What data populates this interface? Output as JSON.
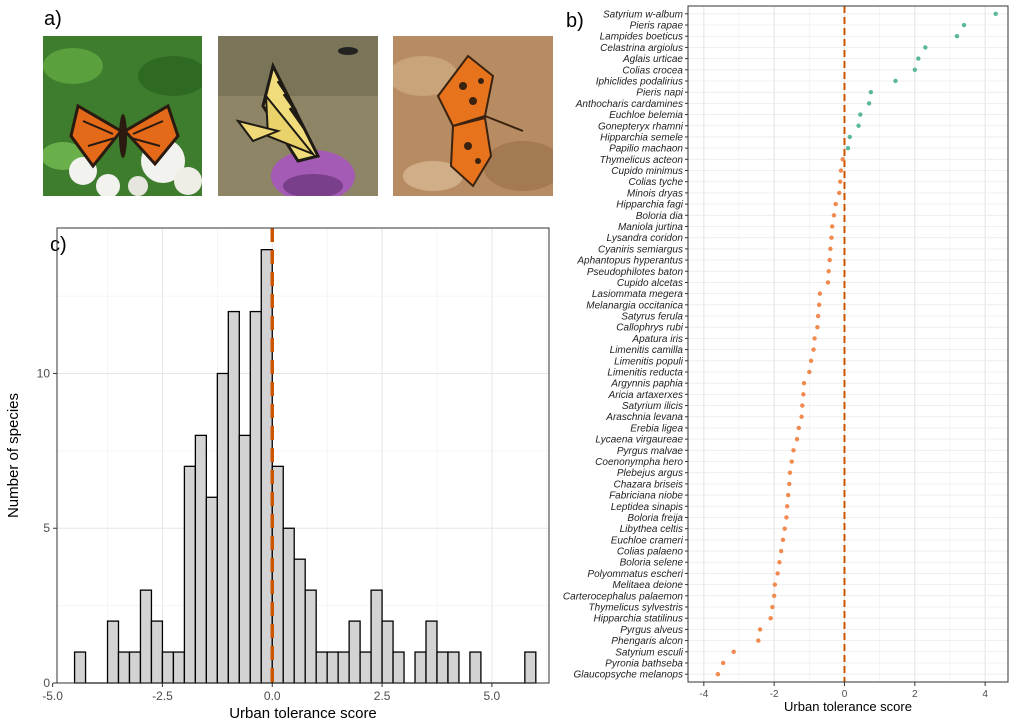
{
  "panels": {
    "a_label": "a)",
    "b_label": "b)",
    "c_label": "c)"
  },
  "photos": [
    {
      "name": "butterfly-photo-fritillary",
      "bg": "#3f7d2e",
      "wing": "#e46a1a",
      "accent": "#2a1a10",
      "flower": "#f2f2ee"
    },
    {
      "name": "butterfly-photo-swallowtail",
      "bg": "#8e8466",
      "wing": "#f0dc7a",
      "accent": "#1e1a14",
      "flower": "#a45bb5"
    },
    {
      "name": "butterfly-photo-comma",
      "bg": "#b88c62",
      "wing": "#e7731c",
      "accent": "#3a2210",
      "flower": "#c8a37c"
    }
  ],
  "chart_data": [
    {
      "type": "bar",
      "panel": "c",
      "title": "",
      "xlabel": "Urban tolerance score",
      "ylabel": "Number of species",
      "xlim": [
        -4.9,
        6.3
      ],
      "ylim": [
        0,
        14.7
      ],
      "xticks": [
        -5.0,
        -2.5,
        0.0,
        2.5,
        5.0
      ],
      "xtick_labels": [
        "-5.0",
        "-2.5",
        "0.0",
        "2.5",
        "5.0"
      ],
      "yticks": [
        0,
        5,
        10
      ],
      "ytick_labels": [
        "0",
        "5",
        "10"
      ],
      "bin_width": 0.25,
      "bins_start": [
        -4.5,
        -4.25,
        -4.0,
        -3.75,
        -3.5,
        -3.25,
        -3.0,
        -2.75,
        -2.5,
        -2.25,
        -2.0,
        -1.75,
        -1.5,
        -1.25,
        -1.0,
        -0.75,
        -0.5,
        -0.25,
        0.0,
        0.25,
        0.5,
        0.75,
        1.0,
        1.25,
        1.5,
        1.75,
        2.0,
        2.25,
        2.5,
        2.75,
        3.0,
        3.25,
        3.5,
        3.75,
        4.0,
        4.25,
        4.5,
        4.75,
        5.0,
        5.25,
        5.5,
        5.75
      ],
      "counts": [
        1,
        0,
        0,
        2,
        1,
        1,
        3,
        2,
        1,
        1,
        7,
        8,
        6,
        10,
        12,
        8,
        12,
        14,
        7,
        5,
        4,
        3,
        1,
        1,
        1,
        2,
        1,
        3,
        2,
        1,
        0,
        1,
        2,
        1,
        1,
        0,
        1,
        0,
        0,
        0,
        0,
        1
      ],
      "bar_fill": "#d3d3d3",
      "bar_stroke": "#000000",
      "reference_line": {
        "x": 0.0,
        "color": "#cc5500",
        "style": "dashed"
      },
      "grid": true,
      "panel_border": true
    },
    {
      "type": "scatter",
      "panel": "b",
      "title": "",
      "xlabel": "Urban tolerance score",
      "ylabel": "",
      "xlim": [
        -4.45,
        4.65
      ],
      "xticks": [
        -4,
        -2,
        0,
        2,
        4
      ],
      "xtick_labels": [
        "-4",
        "-2",
        "0",
        "2",
        "4"
      ],
      "positive_color": "#5ab89a",
      "negative_color": "#f08a4f",
      "reference_line": {
        "x": 0,
        "color": "#cc5500",
        "style": "dashed"
      },
      "grid": true,
      "categories": [
        "Satyrium w-album",
        "Pieris rapae",
        "Lampides boeticus",
        "Celastrina argiolus",
        "Aglais urticae",
        "Colias crocea",
        "Iphiclides podalirius",
        "Pieris napi",
        "Anthocharis cardamines",
        "Euchloe belemia",
        "Gonepteryx rhamni",
        "Hipparchia semele",
        "Papilio machaon",
        "Thymelicus acteon",
        "Cupido minimus",
        "Colias tyche",
        "Minois dryas",
        "Hipparchia fagi",
        "Boloria dia",
        "Maniola jurtina",
        "Lysandra coridon",
        "Cyaniris semiargus",
        "Aphantopus hyperantus",
        "Pseudophilotes baton",
        "Cupido alcetas",
        "Lasiommata megera",
        "Melanargia occitanica",
        "Satyrus ferula",
        "Callophrys rubi",
        "Apatura iris",
        "Limenitis camilla",
        "Limenitis populi",
        "Limenitis reducta",
        "Argynnis paphia",
        "Aricia artaxerxes",
        "Satyrium ilicis",
        "Araschnia levana",
        "Erebia ligea",
        "Lycaena virgaureae",
        "Pyrgus malvae",
        "Coenonympha hero",
        "Plebejus argus",
        "Chazara briseis",
        "Fabriciana niobe",
        "Leptidea sinapis",
        "Boloria freija",
        "Libythea celtis",
        "Euchloe crameri",
        "Colias palaeno",
        "Boloria selene",
        "Polyommatus escheri",
        "Melitaea deione",
        "Carterocephalus palaemon",
        "Thymelicus sylvestris",
        "Hipparchia statilinus",
        "Pyrgus alveus",
        "Phengaris alcon",
        "Satyrium esculi",
        "Pyronia bathseba",
        "Glaucopsyche melanops"
      ],
      "values": [
        4.3,
        3.4,
        3.2,
        2.3,
        2.1,
        2.0,
        1.45,
        0.75,
        0.7,
        0.45,
        0.4,
        0.15,
        0.1,
        -0.05,
        -0.1,
        -0.12,
        -0.15,
        -0.25,
        -0.3,
        -0.35,
        -0.37,
        -0.4,
        -0.42,
        -0.45,
        -0.47,
        -0.7,
        -0.72,
        -0.75,
        -0.77,
        -0.85,
        -0.88,
        -0.95,
        -1.0,
        -1.15,
        -1.17,
        -1.2,
        -1.22,
        -1.3,
        -1.35,
        -1.45,
        -1.5,
        -1.55,
        -1.57,
        -1.6,
        -1.63,
        -1.65,
        -1.7,
        -1.75,
        -1.8,
        -1.85,
        -1.9,
        -1.98,
        -2.0,
        -2.05,
        -2.1,
        -2.4,
        -2.45,
        -3.15,
        -3.45,
        -3.6
      ]
    }
  ]
}
